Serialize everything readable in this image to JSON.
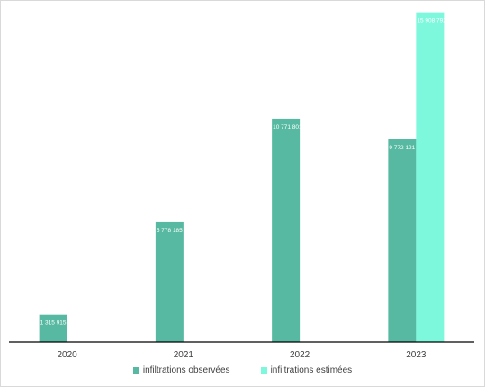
{
  "chart_data": {
    "type": "bar",
    "categories": [
      "2020",
      "2021",
      "2022",
      "2023"
    ],
    "series": [
      {
        "name": "infiltrations observées",
        "color": "#57b9a1",
        "values": [
          1315915,
          5778185,
          10771801,
          9772121
        ],
        "labels": [
          "1 315 915",
          "5 778 185",
          "10 771 801",
          "9 772 121"
        ]
      },
      {
        "name": "infiltrations estimées",
        "color": "#7df8dc",
        "values": [
          null,
          null,
          null,
          15908792
        ],
        "labels": [
          null,
          null,
          null,
          "15 908 792"
        ]
      }
    ],
    "title": "",
    "xlabel": "",
    "ylabel": "",
    "ylim": [
      0,
      16500000
    ],
    "grid": false,
    "legend": "bottom"
  }
}
